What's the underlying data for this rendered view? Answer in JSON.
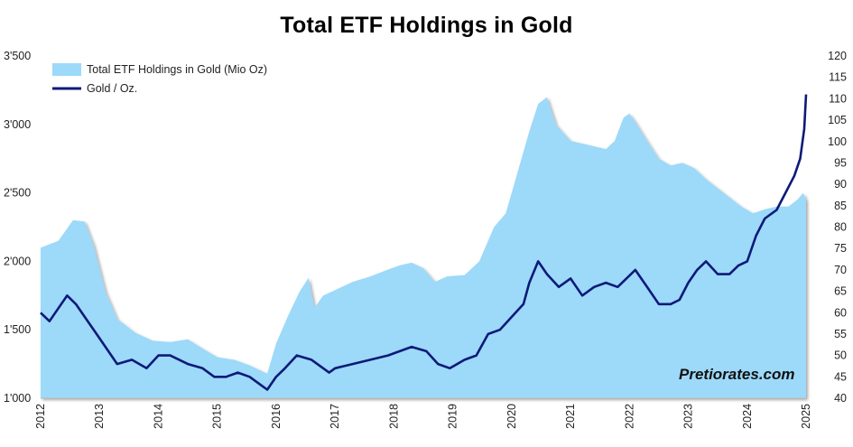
{
  "chart_data": {
    "type": "area+line",
    "title": "Total ETF Holdings in Gold",
    "watermark": "Pretiorates.com",
    "legend_position": "top-left",
    "grid": false,
    "x_ticks": [
      "2012",
      "2013",
      "2014",
      "2015",
      "2016",
      "2017",
      "2018",
      "2019",
      "2020",
      "2021",
      "2022",
      "2023",
      "2024",
      "2025"
    ],
    "y_left": {
      "ticks": [
        "1'000",
        "1'500",
        "2'000",
        "2'500",
        "3'000",
        "3'500"
      ],
      "range": [
        1000,
        3500
      ]
    },
    "y_right": {
      "ticks": [
        "40",
        "45",
        "50",
        "55",
        "60",
        "65",
        "70",
        "75",
        "80",
        "85",
        "90",
        "95",
        "100",
        "105",
        "110",
        "115",
        "120"
      ],
      "range": [
        40,
        120
      ]
    },
    "series": [
      {
        "name": "Total ETF Holdings in Gold (Mio Oz)",
        "kind": "area",
        "axis": "left",
        "color": "#9dd9f9",
        "x": [
          2012.0,
          2012.3,
          2012.55,
          2012.75,
          2012.9,
          2013.1,
          2013.3,
          2013.6,
          2013.9,
          2014.2,
          2014.5,
          2014.8,
          2015.0,
          2015.3,
          2015.55,
          2015.75,
          2015.85,
          2016.0,
          2016.2,
          2016.4,
          2016.55,
          2016.65,
          2016.8,
          2017.0,
          2017.3,
          2017.6,
          2017.9,
          2018.1,
          2018.3,
          2018.5,
          2018.7,
          2018.9,
          2019.2,
          2019.45,
          2019.7,
          2019.9,
          2020.1,
          2020.3,
          2020.45,
          2020.6,
          2020.75,
          2021.0,
          2021.3,
          2021.6,
          2021.75,
          2021.9,
          2022.0,
          2022.1,
          2022.3,
          2022.5,
          2022.7,
          2022.9,
          2023.1,
          2023.3,
          2023.6,
          2023.9,
          2024.1,
          2024.3,
          2024.5,
          2024.7,
          2024.85,
          2024.95,
          2025.0
        ],
        "values": [
          2100,
          2150,
          2300,
          2290,
          2120,
          1780,
          1580,
          1480,
          1420,
          1410,
          1430,
          1350,
          1300,
          1280,
          1240,
          1200,
          1180,
          1400,
          1600,
          1780,
          1880,
          1660,
          1750,
          1790,
          1850,
          1890,
          1940,
          1970,
          1990,
          1950,
          1850,
          1890,
          1900,
          2000,
          2250,
          2350,
          2650,
          2950,
          3150,
          3200,
          3000,
          2880,
          2850,
          2820,
          2880,
          3050,
          3080,
          3020,
          2880,
          2750,
          2700,
          2720,
          2680,
          2600,
          2500,
          2400,
          2350,
          2380,
          2400,
          2400,
          2450,
          2500,
          2450
        ]
      },
      {
        "name": "Gold / Oz.",
        "kind": "line",
        "axis": "right",
        "color": "#0c1a78",
        "x": [
          2012.0,
          2012.15,
          2012.35,
          2012.45,
          2012.6,
          2012.8,
          2012.95,
          2013.1,
          2013.3,
          2013.55,
          2013.8,
          2014.0,
          2014.2,
          2014.5,
          2014.75,
          2014.95,
          2015.15,
          2015.35,
          2015.55,
          2015.75,
          2015.85,
          2016.0,
          2016.15,
          2016.35,
          2016.6,
          2016.9,
          2017.0,
          2017.3,
          2017.6,
          2017.9,
          2018.1,
          2018.3,
          2018.55,
          2018.75,
          2018.95,
          2019.2,
          2019.4,
          2019.6,
          2019.8,
          2020.0,
          2020.2,
          2020.3,
          2020.45,
          2020.6,
          2020.8,
          2021.0,
          2021.2,
          2021.4,
          2021.6,
          2021.8,
          2021.95,
          2022.1,
          2022.3,
          2022.5,
          2022.7,
          2022.85,
          2023.0,
          2023.15,
          2023.3,
          2023.5,
          2023.7,
          2023.85,
          2024.0,
          2024.15,
          2024.3,
          2024.5,
          2024.65,
          2024.8,
          2024.9,
          2024.97,
          2025.0
        ],
        "values": [
          60,
          58,
          62,
          64,
          62,
          58,
          55,
          52,
          48,
          49,
          47,
          50,
          50,
          48,
          47,
          45,
          45,
          46,
          45,
          43,
          42,
          45,
          47,
          50,
          49,
          46,
          47,
          48,
          49,
          50,
          51,
          52,
          51,
          48,
          47,
          49,
          50,
          55,
          56,
          59,
          62,
          67,
          72,
          69,
          66,
          68,
          64,
          66,
          67,
          66,
          68,
          70,
          66,
          62,
          62,
          63,
          67,
          70,
          72,
          69,
          69,
          71,
          72,
          78,
          82,
          84,
          88,
          92,
          96,
          103,
          111
        ]
      }
    ]
  }
}
